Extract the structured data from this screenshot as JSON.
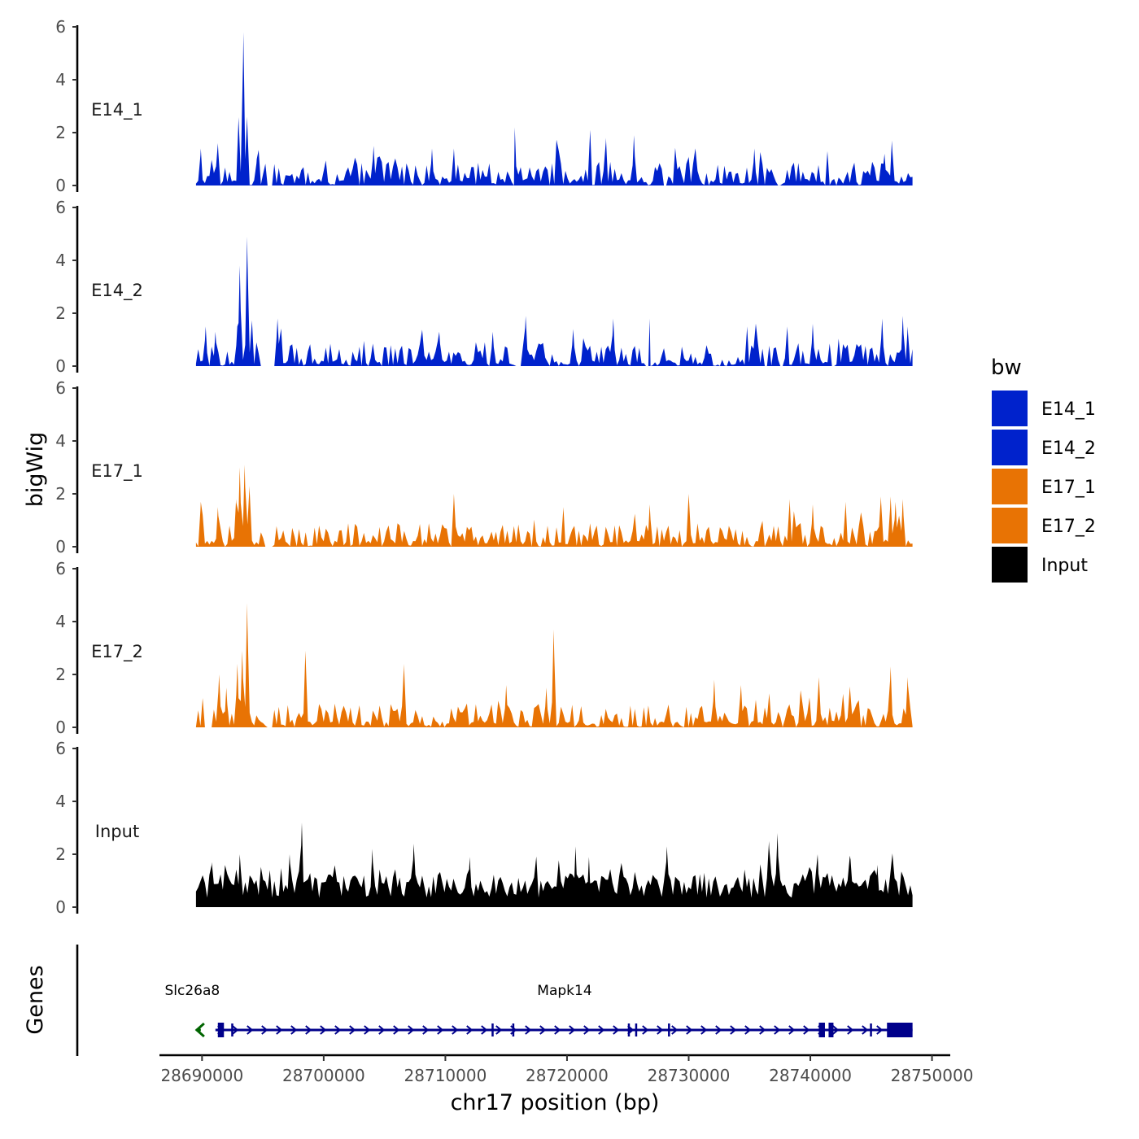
{
  "chart_data": {
    "type": "area",
    "y_axis_title": "bigWig",
    "genes_axis_title": "Genes",
    "x_axis_title": "chr17 position (bp)",
    "xlim": [
      28686500,
      28751500
    ],
    "x_ticks": [
      28690000,
      28700000,
      28710000,
      28720000,
      28730000,
      28740000,
      28750000
    ],
    "x_tick_labels": [
      "28690000",
      "28700000",
      "28710000",
      "28720000",
      "28730000",
      "28740000",
      "28750000"
    ],
    "data_range": [
      28689500,
      28748400
    ],
    "ylim": [
      0,
      6
    ],
    "y_ticks": [
      0,
      2,
      4,
      6
    ],
    "y_tick_labels": [
      "0",
      "2",
      "4",
      "6"
    ],
    "legend": {
      "title": "bw",
      "entries": [
        {
          "label": "E14_1",
          "color": "#0022cc"
        },
        {
          "label": "E14_2",
          "color": "#0022cc"
        },
        {
          "label": "E17_1",
          "color": "#e87304"
        },
        {
          "label": "E17_2",
          "color": "#e87304"
        },
        {
          "label": "Input",
          "color": "#000000"
        }
      ]
    },
    "series": [
      {
        "name": "E14_1",
        "color": "#0022cc",
        "seed": 11,
        "gaps": [
          [
            28695300,
            28695900
          ],
          [
            28715500,
            28715800
          ],
          [
            28727900,
            28728200
          ]
        ],
        "peaks": [
          {
            "x": 28693400,
            "y": 5.8
          },
          {
            "x": 28693000,
            "y": 2.6
          },
          {
            "x": 28693700,
            "y": 2.6
          },
          {
            "x": 28694500,
            "y": 1.0
          },
          {
            "x": 28689900,
            "y": 1.4
          },
          {
            "x": 28691300,
            "y": 1.6
          },
          {
            "x": 28704100,
            "y": 1.5
          },
          {
            "x": 28708900,
            "y": 1.4
          },
          {
            "x": 28710700,
            "y": 1.4
          },
          {
            "x": 28715700,
            "y": 2.2
          },
          {
            "x": 28721900,
            "y": 2.1
          },
          {
            "x": 28723200,
            "y": 1.8
          },
          {
            "x": 28725500,
            "y": 1.9
          },
          {
            "x": 28735400,
            "y": 1.4
          },
          {
            "x": 28741400,
            "y": 1.3
          },
          {
            "x": 28746700,
            "y": 1.7
          },
          {
            "x": 28746100,
            "y": 1.2
          },
          {
            "x": 28730000,
            "y": 1.1
          }
        ]
      },
      {
        "name": "E14_2",
        "color": "#0022cc",
        "seed": 23,
        "gaps": [
          [
            28694700,
            28696000
          ],
          [
            28715800,
            28716200
          ],
          [
            28726500,
            28726900
          ],
          [
            28737400,
            28737800
          ],
          [
            28741700,
            28742000
          ]
        ],
        "peaks": [
          {
            "x": 28693100,
            "y": 3.8
          },
          {
            "x": 28693700,
            "y": 4.9
          },
          {
            "x": 28692900,
            "y": 1.5
          },
          {
            "x": 28690300,
            "y": 1.5
          },
          {
            "x": 28691100,
            "y": 1.3
          },
          {
            "x": 28696200,
            "y": 1.8
          },
          {
            "x": 28709500,
            "y": 1.3
          },
          {
            "x": 28713900,
            "y": 1.3
          },
          {
            "x": 28716600,
            "y": 1.9
          },
          {
            "x": 28720500,
            "y": 1.4
          },
          {
            "x": 28723800,
            "y": 1.8
          },
          {
            "x": 28726800,
            "y": 1.8
          },
          {
            "x": 28734800,
            "y": 1.5
          },
          {
            "x": 28738100,
            "y": 1.5
          },
          {
            "x": 28740200,
            "y": 1.6
          },
          {
            "x": 28745900,
            "y": 1.8
          },
          {
            "x": 28747600,
            "y": 1.9
          },
          {
            "x": 28748000,
            "y": 1.5
          }
        ]
      },
      {
        "name": "E17_1",
        "color": "#e87304",
        "seed": 37,
        "gaps": [
          [
            28695200,
            28695800
          ]
        ],
        "peaks": [
          {
            "x": 28693100,
            "y": 3.0
          },
          {
            "x": 28693500,
            "y": 3.1
          },
          {
            "x": 28692800,
            "y": 1.8
          },
          {
            "x": 28693900,
            "y": 2.3
          },
          {
            "x": 28689900,
            "y": 1.7
          },
          {
            "x": 28691300,
            "y": 1.5
          },
          {
            "x": 28710700,
            "y": 2.0
          },
          {
            "x": 28719700,
            "y": 1.5
          },
          {
            "x": 28726800,
            "y": 1.6
          },
          {
            "x": 28730000,
            "y": 2.0
          },
          {
            "x": 28738300,
            "y": 1.8
          },
          {
            "x": 28742900,
            "y": 1.7
          },
          {
            "x": 28745800,
            "y": 1.9
          },
          {
            "x": 28746600,
            "y": 1.9
          },
          {
            "x": 28747000,
            "y": 1.7
          },
          {
            "x": 28747600,
            "y": 1.8
          },
          {
            "x": 28740200,
            "y": 1.6
          }
        ]
      },
      {
        "name": "E17_2",
        "color": "#e87304",
        "seed": 53,
        "gaps": [
          [
            28690200,
            28690800
          ],
          [
            28695300,
            28695800
          ]
        ],
        "peaks": [
          {
            "x": 28693700,
            "y": 4.7
          },
          {
            "x": 28693300,
            "y": 2.9
          },
          {
            "x": 28692900,
            "y": 2.4
          },
          {
            "x": 28691400,
            "y": 2.0
          },
          {
            "x": 28692000,
            "y": 1.5
          },
          {
            "x": 28698500,
            "y": 2.9
          },
          {
            "x": 28706600,
            "y": 2.4
          },
          {
            "x": 28715000,
            "y": 1.6
          },
          {
            "x": 28718900,
            "y": 3.7
          },
          {
            "x": 28718300,
            "y": 1.5
          },
          {
            "x": 28732100,
            "y": 1.8
          },
          {
            "x": 28734300,
            "y": 1.6
          },
          {
            "x": 28740700,
            "y": 1.9
          },
          {
            "x": 28746600,
            "y": 2.3
          },
          {
            "x": 28748000,
            "y": 1.9
          },
          {
            "x": 28739200,
            "y": 1.4
          }
        ]
      },
      {
        "name": "Input",
        "color": "#000000",
        "seed": 71,
        "gaps": [],
        "peaks": [
          {
            "x": 28698200,
            "y": 3.2
          },
          {
            "x": 28697200,
            "y": 2.0
          },
          {
            "x": 28704000,
            "y": 2.2
          },
          {
            "x": 28707400,
            "y": 2.4
          },
          {
            "x": 28720700,
            "y": 2.3
          },
          {
            "x": 28721800,
            "y": 1.9
          },
          {
            "x": 28728200,
            "y": 2.3
          },
          {
            "x": 28736600,
            "y": 2.5
          },
          {
            "x": 28737300,
            "y": 2.8
          },
          {
            "x": 28693100,
            "y": 2.0
          },
          {
            "x": 28690800,
            "y": 1.7
          },
          {
            "x": 28712000,
            "y": 1.9
          },
          {
            "x": 28740600,
            "y": 2.0
          },
          {
            "x": 28743300,
            "y": 1.8
          },
          {
            "x": 28745500,
            "y": 1.6
          }
        ]
      }
    ],
    "genes": [
      {
        "name": "Slc26a8",
        "strand": "-",
        "color": "#006400",
        "start": 28689500,
        "end": 28689900,
        "label_x": 28689200
      },
      {
        "name": "Mapk14",
        "strand": "+",
        "color": "#00008b",
        "start": 28691100,
        "end": 28748400,
        "label_x": 28719800,
        "exons": [
          [
            28691300,
            28691800
          ],
          [
            28692400,
            28692500
          ],
          [
            28713800,
            28713900
          ],
          [
            28715500,
            28715600
          ],
          [
            28725000,
            28725100
          ],
          [
            28725600,
            28725700
          ],
          [
            28728300,
            28728400
          ],
          [
            28740700,
            28741200
          ],
          [
            28741500,
            28741900
          ],
          [
            28744900,
            28745000
          ],
          [
            28746300,
            28748400
          ]
        ]
      }
    ]
  }
}
